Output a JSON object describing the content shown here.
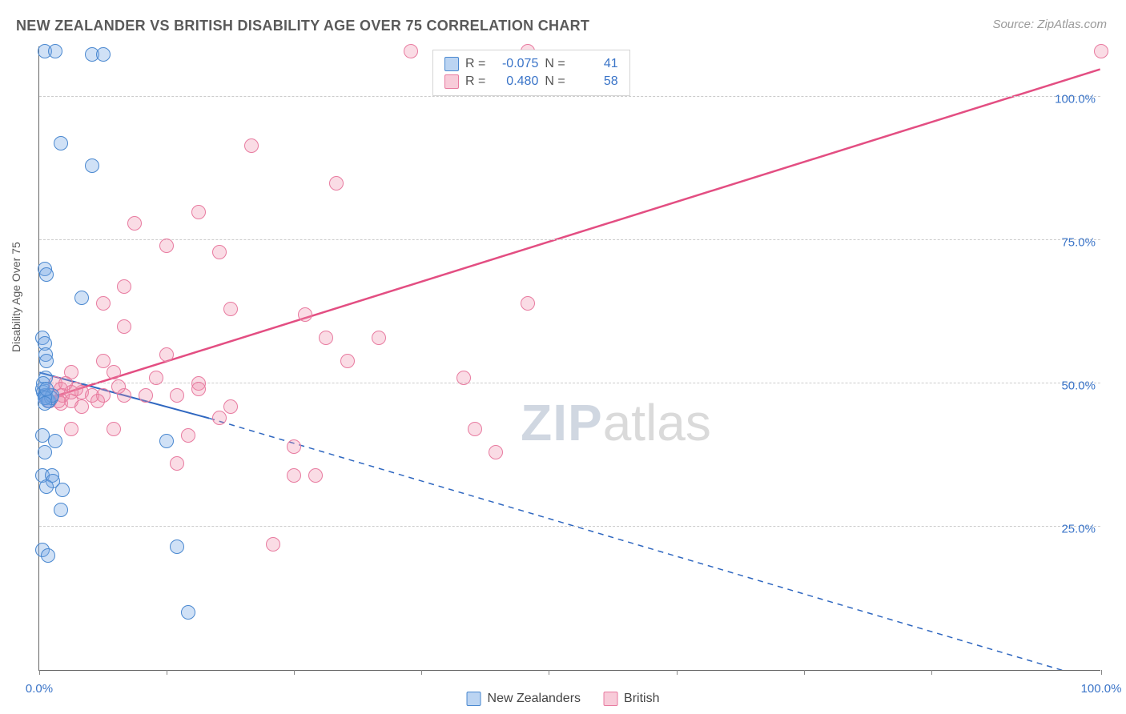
{
  "title": "NEW ZEALANDER VS BRITISH DISABILITY AGE OVER 75 CORRELATION CHART",
  "source": "Source: ZipAtlas.com",
  "ylabel": "Disability Age Over 75",
  "watermark_zip": "ZIP",
  "watermark_atlas": "atlas",
  "chart": {
    "type": "scatter",
    "xlim": [
      0,
      100
    ],
    "ylim": [
      0,
      109
    ],
    "xtick_positions": [
      0,
      12,
      24,
      36,
      48,
      60,
      72,
      84,
      100
    ],
    "xtick_labels": {
      "0": "0.0%",
      "100": "100.0%"
    },
    "ytick_positions": [
      25,
      50,
      75,
      100
    ],
    "ytick_labels": [
      "25.0%",
      "50.0%",
      "75.0%",
      "100.0%"
    ],
    "grid_color": "#cccccc",
    "axis_color": "#666666",
    "background_color": "#ffffff",
    "marker_radius": 9,
    "series": {
      "blue": {
        "label": "New Zealanders",
        "fill": "rgba(120,170,230,0.35)",
        "stroke": "#4a88d0",
        "r_value": "-0.075",
        "n_value": "41",
        "trend": {
          "x0": 0,
          "y0": 52,
          "x1_solid": 16,
          "y1_solid": 44,
          "x1_dash": 100,
          "y1_dash": -2,
          "color": "#2f67c0",
          "width": 2
        },
        "points": [
          [
            0.5,
            108
          ],
          [
            1.5,
            108
          ],
          [
            5,
            107.5
          ],
          [
            6,
            107.5
          ],
          [
            2,
            92
          ],
          [
            5,
            88
          ],
          [
            0.5,
            70
          ],
          [
            0.7,
            69
          ],
          [
            4,
            65
          ],
          [
            0.3,
            58
          ],
          [
            0.5,
            57
          ],
          [
            0.6,
            55
          ],
          [
            0.7,
            54
          ],
          [
            0.3,
            49
          ],
          [
            0.4,
            48.5
          ],
          [
            0.5,
            48
          ],
          [
            0.6,
            48
          ],
          [
            0.7,
            47.5
          ],
          [
            0.8,
            47
          ],
          [
            0.9,
            47
          ],
          [
            1.1,
            47.5
          ],
          [
            1.2,
            48
          ],
          [
            0.3,
            41
          ],
          [
            1.5,
            40
          ],
          [
            0.5,
            38
          ],
          [
            0.3,
            34
          ],
          [
            1.2,
            34
          ],
          [
            1.3,
            33
          ],
          [
            0.7,
            32
          ],
          [
            2.2,
            31.5
          ],
          [
            2,
            28
          ],
          [
            0.3,
            21
          ],
          [
            0.8,
            20
          ],
          [
            13,
            21.5
          ],
          [
            12,
            40
          ],
          [
            14,
            10
          ],
          [
            0.5,
            47.5
          ],
          [
            0.6,
            51
          ],
          [
            0.4,
            50
          ],
          [
            0.5,
            46.5
          ],
          [
            0.7,
            49
          ]
        ]
      },
      "pink": {
        "label": "British",
        "fill": "rgba(240,140,170,0.3)",
        "stroke": "#e87ba0",
        "r_value": "0.480",
        "n_value": "58",
        "trend": {
          "x0": 0,
          "y0": 47,
          "x1_solid": 100,
          "y1_solid": 105,
          "color": "#e34e82",
          "width": 2.5
        },
        "points": [
          [
            35,
            108
          ],
          [
            46,
            108
          ],
          [
            100,
            108
          ],
          [
            20,
            91.5
          ],
          [
            28,
            85
          ],
          [
            15,
            80
          ],
          [
            9,
            78
          ],
          [
            12,
            74
          ],
          [
            17,
            73
          ],
          [
            8,
            67
          ],
          [
            46,
            64
          ],
          [
            6,
            64
          ],
          [
            18,
            63
          ],
          [
            25,
            62
          ],
          [
            8,
            60
          ],
          [
            27,
            58
          ],
          [
            32,
            58
          ],
          [
            12,
            55
          ],
          [
            29,
            54
          ],
          [
            6,
            54
          ],
          [
            3,
            52
          ],
          [
            7,
            52
          ],
          [
            11,
            51
          ],
          [
            15,
            50
          ],
          [
            40,
            51
          ],
          [
            2,
            49
          ],
          [
            4,
            48.5
          ],
          [
            5,
            48
          ],
          [
            6,
            48
          ],
          [
            8,
            48
          ],
          [
            10,
            48
          ],
          [
            13,
            48
          ],
          [
            15,
            49
          ],
          [
            1,
            47
          ],
          [
            2,
            46.5
          ],
          [
            3,
            47
          ],
          [
            4,
            46
          ],
          [
            18,
            46
          ],
          [
            17,
            44
          ],
          [
            3,
            42
          ],
          [
            7,
            42
          ],
          [
            14,
            41
          ],
          [
            41,
            42
          ],
          [
            24,
            39
          ],
          [
            43,
            38
          ],
          [
            13,
            36
          ],
          [
            24,
            34
          ],
          [
            26,
            34
          ],
          [
            22,
            22
          ],
          [
            1.5,
            50
          ],
          [
            2.2,
            48
          ],
          [
            3.5,
            49
          ],
          [
            5.5,
            47
          ],
          [
            7.5,
            49.5
          ],
          [
            1,
            48
          ],
          [
            1.8,
            47
          ],
          [
            2.5,
            50
          ],
          [
            3,
            48.5
          ]
        ]
      }
    }
  },
  "legend_r": {
    "r_label": "R =",
    "n_label": "N ="
  },
  "legend_bottom": [
    {
      "key": "blue",
      "label": "New Zealanders"
    },
    {
      "key": "pink",
      "label": "British"
    }
  ]
}
